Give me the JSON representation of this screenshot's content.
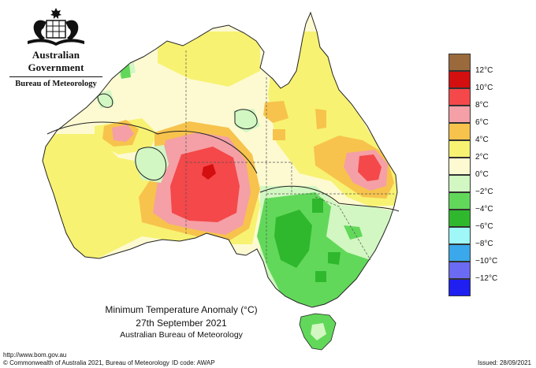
{
  "header": {
    "government": "Australian Government",
    "bureau": "Bureau of Meteorology"
  },
  "legend": {
    "items": [
      {
        "label": "12°C",
        "color": "#9a6a3c"
      },
      {
        "label": "10°C",
        "color": "#d40f0f"
      },
      {
        "label": "8°C",
        "color": "#f4484a"
      },
      {
        "label": "6°C",
        "color": "#f4a0a6"
      },
      {
        "label": "4°C",
        "color": "#f7c34c"
      },
      {
        "label": "2°C",
        "color": "#f7f272"
      },
      {
        "label": "0°C",
        "color": "#fdfad2"
      },
      {
        "label": "−2°C",
        "color": "#d2f7c2"
      },
      {
        "label": "−4°C",
        "color": "#62d85a"
      },
      {
        "label": "−6°C",
        "color": "#2fb82d"
      },
      {
        "label": "−8°C",
        "color": "#9ff7f7"
      },
      {
        "label": "−10°C",
        "color": "#3aa8ea"
      },
      {
        "label": "−12°C",
        "color": "#6a6af2"
      },
      {
        "label": "",
        "color": "#1f1ff2"
      }
    ]
  },
  "title": {
    "line1": "Minimum Temperature Anomaly (°C)",
    "line2": "27th September 2021",
    "line3": "Australian Bureau of Meteorology"
  },
  "footer": {
    "url": "http://www.bom.gov.au",
    "copyright": "© Commonwealth of Australia 2021, Bureau of Meteorology",
    "id_code": "ID code: AWAP",
    "issued": "Issued: 28/09/2021"
  }
}
